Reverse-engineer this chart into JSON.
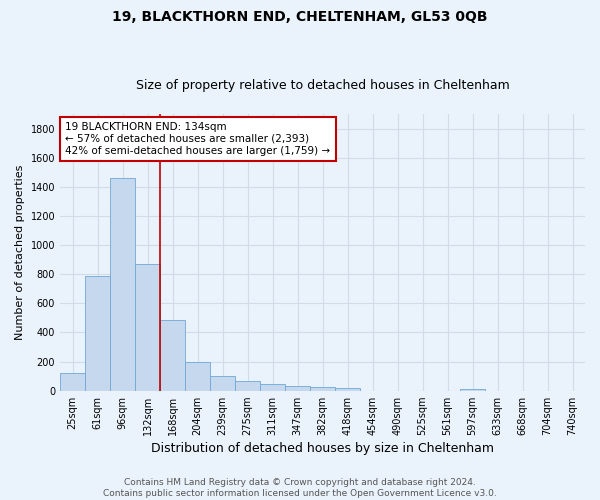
{
  "title": "19, BLACKTHORN END, CHELTENHAM, GL53 0QB",
  "subtitle": "Size of property relative to detached houses in Cheltenham",
  "xlabel": "Distribution of detached houses by size in Cheltenham",
  "ylabel": "Number of detached properties",
  "footer_line1": "Contains HM Land Registry data © Crown copyright and database right 2024.",
  "footer_line2": "Contains public sector information licensed under the Open Government Licence v3.0.",
  "bar_labels": [
    "25sqm",
    "61sqm",
    "96sqm",
    "132sqm",
    "168sqm",
    "204sqm",
    "239sqm",
    "275sqm",
    "311sqm",
    "347sqm",
    "382sqm",
    "418sqm",
    "454sqm",
    "490sqm",
    "525sqm",
    "561sqm",
    "597sqm",
    "633sqm",
    "668sqm",
    "704sqm",
    "740sqm"
  ],
  "bar_values": [
    120,
    790,
    1460,
    870,
    485,
    200,
    100,
    65,
    48,
    33,
    27,
    20,
    0,
    0,
    0,
    0,
    13,
    0,
    0,
    0,
    0
  ],
  "bar_color": "#c5d8ed",
  "bar_edgecolor": "#6fa8d6",
  "highlight_index": 3,
  "highlight_color": "#c00000",
  "ylim": [
    0,
    1900
  ],
  "yticks": [
    0,
    200,
    400,
    600,
    800,
    1000,
    1200,
    1400,
    1600,
    1800
  ],
  "annotation_text": "19 BLACKTHORN END: 134sqm\n← 57% of detached houses are smaller (2,393)\n42% of semi-detached houses are larger (1,759) →",
  "annotation_box_color": "#ffffff",
  "annotation_box_edgecolor": "#c00000",
  "bg_color": "#eaf2fb",
  "plot_bg_color": "#eaf2fb",
  "grid_color": "#d0dde8",
  "title_fontsize": 10,
  "subtitle_fontsize": 9,
  "xlabel_fontsize": 9,
  "ylabel_fontsize": 8,
  "tick_fontsize": 7,
  "annotation_fontsize": 7.5,
  "footer_fontsize": 6.5
}
